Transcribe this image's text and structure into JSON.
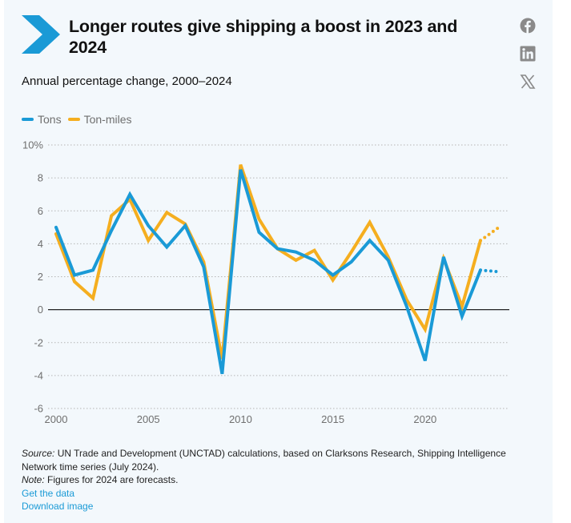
{
  "header": {
    "title": "Longer routes give shipping a boost in 2023 and 2024",
    "subtitle": "Annual percentage change, 2000–2024",
    "brand_color": "#1a9ad6"
  },
  "social": [
    {
      "name": "facebook",
      "icon": "facebook-icon"
    },
    {
      "name": "linkedin",
      "icon": "linkedin-icon"
    },
    {
      "name": "x",
      "icon": "x-icon"
    }
  ],
  "footer": {
    "source_label": "Source:",
    "source_text": " UN Trade and Development (UNCTAD) calculations, based on Clarksons Research, Shipping Intelligence Network time series (July 2024).",
    "note_label": "Note:",
    "note_text": " Figures for 2024 are forecasts.",
    "link_data": "Get the data",
    "link_image": "Download image"
  },
  "chart_data": {
    "type": "line",
    "title": "Longer routes give shipping a boost in 2023 and 2024",
    "subtitle": "Annual percentage change, 2000–2024",
    "xlabel": "",
    "ylabel": "",
    "x": [
      2000,
      2001,
      2002,
      2003,
      2004,
      2005,
      2006,
      2007,
      2008,
      2009,
      2010,
      2011,
      2012,
      2013,
      2014,
      2015,
      2016,
      2017,
      2018,
      2019,
      2020,
      2021,
      2022,
      2023,
      2024
    ],
    "forecast_from": 2023,
    "xlim": [
      2000,
      2024
    ],
    "ylim": [
      -6,
      10
    ],
    "yticks": [
      -6,
      -4,
      -2,
      0,
      2,
      4,
      6,
      8,
      10
    ],
    "ytick_labels": [
      "-6",
      "-4",
      "-2",
      "0",
      "2",
      "4",
      "6",
      "8",
      "10%"
    ],
    "xticks": [
      2000,
      2005,
      2010,
      2015,
      2020
    ],
    "xtick_labels": [
      "2000",
      "2005",
      "2010",
      "2015",
      "2020"
    ],
    "grid": "horizontal-dotted",
    "legend": "top-left",
    "series": [
      {
        "name": "Ton-miles",
        "color": "#f5ae1f",
        "values": [
          4.6,
          1.7,
          0.7,
          5.7,
          6.7,
          4.2,
          5.9,
          5.2,
          2.9,
          -3.0,
          8.8,
          5.5,
          3.7,
          3.0,
          3.6,
          1.8,
          3.5,
          5.3,
          3.2,
          0.6,
          -1.2,
          3.1,
          0.2,
          4.2,
          5.0
        ]
      },
      {
        "name": "Tons",
        "color": "#1a9ad6",
        "values": [
          5.0,
          2.1,
          2.4,
          4.8,
          7.0,
          5.1,
          3.8,
          5.1,
          2.6,
          -3.9,
          8.5,
          4.7,
          3.7,
          3.5,
          3.0,
          2.1,
          2.9,
          4.2,
          3.0,
          0.2,
          -3.1,
          3.2,
          -0.4,
          2.4,
          2.3
        ]
      }
    ],
    "legend_order": [
      "Tons",
      "Ton-miles"
    ]
  }
}
